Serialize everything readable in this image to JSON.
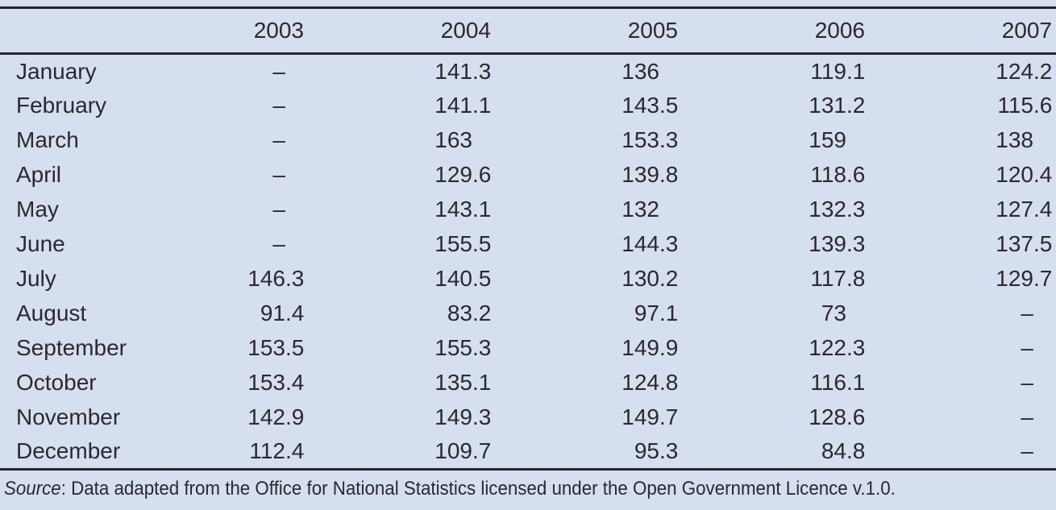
{
  "colors": {
    "background": "#d5dff0",
    "ink": "#2a292e",
    "rule": "#26262b"
  },
  "chart_data": {
    "type": "table",
    "title": "",
    "columns": [
      "",
      "2003",
      "2004",
      "2005",
      "2006",
      "2007"
    ],
    "no_data_symbol": "–",
    "rows": [
      {
        "label": "January",
        "values": [
          "–",
          "141.3",
          "136",
          "119.1",
          "124.2"
        ]
      },
      {
        "label": "February",
        "values": [
          "–",
          "141.1",
          "143.5",
          "131.2",
          "115.6"
        ]
      },
      {
        "label": "March",
        "values": [
          "–",
          "163",
          "153.3",
          "159",
          "138"
        ]
      },
      {
        "label": "April",
        "values": [
          "–",
          "129.6",
          "139.8",
          "118.6",
          "120.4"
        ]
      },
      {
        "label": "May",
        "values": [
          "–",
          "143.1",
          "132",
          "132.3",
          "127.4"
        ]
      },
      {
        "label": "June",
        "values": [
          "–",
          "155.5",
          "144.3",
          "139.3",
          "137.5"
        ]
      },
      {
        "label": "July",
        "values": [
          "146.3",
          "140.5",
          "130.2",
          "117.8",
          "129.7"
        ]
      },
      {
        "label": "August",
        "values": [
          "91.4",
          "83.2",
          "97.1",
          "73",
          "–"
        ]
      },
      {
        "label": "September",
        "values": [
          "153.5",
          "155.3",
          "149.9",
          "122.3",
          "–"
        ]
      },
      {
        "label": "October",
        "values": [
          "153.4",
          "135.1",
          "124.8",
          "116.1",
          "–"
        ]
      },
      {
        "label": "November",
        "values": [
          "142.9",
          "149.3",
          "149.7",
          "128.6",
          "–"
        ]
      },
      {
        "label": "December",
        "values": [
          "112.4",
          "109.7",
          "95.3",
          "84.8",
          "–"
        ]
      }
    ]
  },
  "source": {
    "label": "Source",
    "text": ": Data adapted from the Office for National Statistics licensed under the Open Government Licence v.1.0."
  }
}
